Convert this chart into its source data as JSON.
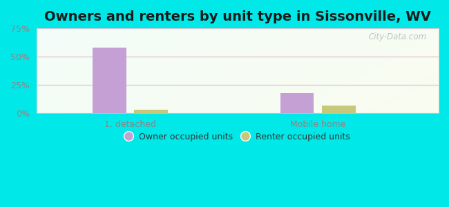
{
  "title": "Owners and renters by unit type in Sissonville, WV",
  "categories": [
    "1, detached",
    "Mobile home"
  ],
  "owner_values": [
    58,
    18
  ],
  "renter_values": [
    3,
    7
  ],
  "owner_color": "#c4a0d4",
  "renter_color": "#c8c87a",
  "owner_label": "Owner occupied units",
  "renter_label": "Renter occupied units",
  "ylim": [
    0,
    75
  ],
  "yticks": [
    0,
    25,
    50,
    75
  ],
  "yticklabels": [
    "0%",
    "25%",
    "50%",
    "75%"
  ],
  "background_color": "#00e8e8",
  "watermark": "City-Data.com",
  "bar_width": 0.25,
  "title_fontsize": 14,
  "tick_fontsize": 9,
  "legend_fontsize": 9,
  "grid_color": "#e8c8d0",
  "tick_color": "#888888",
  "bg_left": "#d8f0d0",
  "bg_right": "#f0faf8",
  "bg_top": "#f8feff"
}
